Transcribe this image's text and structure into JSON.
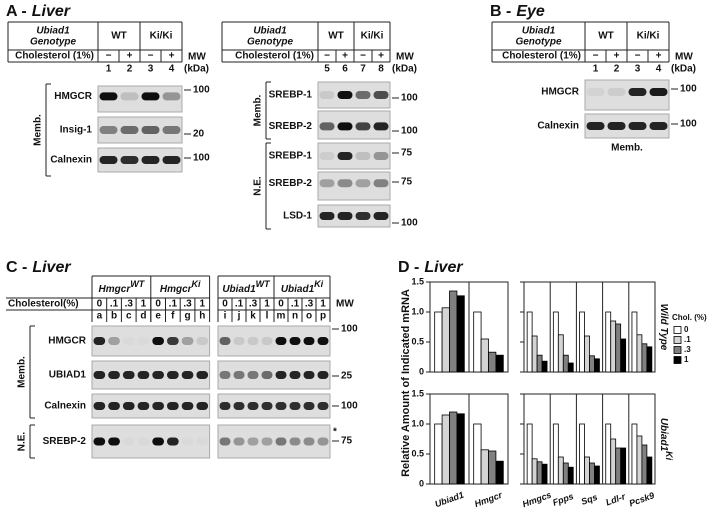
{
  "panel_a": {
    "letter": "A -",
    "tissue": "Liver",
    "left": {
      "gene": "Ubiad1",
      "genotype": "Genotype",
      "groups": [
        "WT",
        "Ki/Ki"
      ],
      "treatment": "Cholesterol (1%)",
      "signs": [
        "−",
        "+",
        "−",
        "+"
      ],
      "lanes": [
        "1",
        "2",
        "3",
        "4"
      ],
      "mw": "MW",
      "kda": "(kDa)",
      "fractions": [
        {
          "name": "Memb.",
          "blots": [
            {
              "protein": "HMGCR",
              "marker": "100"
            },
            {
              "protein": "Insig-1",
              "marker": "20"
            },
            {
              "protein": "Calnexin",
              "marker": "100"
            }
          ]
        }
      ]
    },
    "right": {
      "gene": "Ubiad1",
      "genotype": "Genotype",
      "groups": [
        "WT",
        "Ki/Ki"
      ],
      "treatment": "Cholesterol (1%)",
      "signs": [
        "−",
        "+",
        "−",
        "+"
      ],
      "lanes": [
        "5",
        "6",
        "7",
        "8"
      ],
      "mw": "MW",
      "kda": "(kDa)",
      "fractions": [
        {
          "name": "Memb.",
          "blots": [
            {
              "protein": "SREBP-1",
              "marker": "100"
            },
            {
              "protein": "SREBP-2",
              "marker": "100"
            }
          ]
        },
        {
          "name": "N.E.",
          "blots": [
            {
              "protein": "SREBP-1",
              "marker": "75"
            },
            {
              "protein": "SREBP-2",
              "marker": "75"
            },
            {
              "protein": "LSD-1",
              "marker": "100"
            }
          ]
        }
      ]
    }
  },
  "panel_b": {
    "letter": "B -",
    "tissue": "Eye",
    "gene": "Ubiad1",
    "genotype": "Genotype",
    "groups": [
      "WT",
      "Ki/Ki"
    ],
    "treatment": "Cholesterol (1%)",
    "signs": [
      "−",
      "+",
      "−",
      "+"
    ],
    "lanes": [
      "1",
      "2",
      "3",
      "4"
    ],
    "mw": "MW",
    "kda": "(kDa)",
    "fraction": "Memb.",
    "blots": [
      {
        "protein": "HMGCR",
        "marker": "100"
      },
      {
        "protein": "Calnexin",
        "marker": "100"
      }
    ]
  },
  "panel_c": {
    "letter": "C -",
    "tissue": "Liver",
    "treatment": "Cholesterol(%)",
    "mw": "MW",
    "left": {
      "groups": [
        {
          "gene": "Hmgcr",
          "allele": "WT"
        },
        {
          "gene": "Hmgcr",
          "allele": "Ki"
        }
      ],
      "doses": [
        "0",
        ".1",
        ".3",
        "1",
        "0",
        ".1",
        ".3",
        "1"
      ],
      "lanes": [
        "a",
        "b",
        "c",
        "d",
        "e",
        "f",
        "g",
        "h"
      ]
    },
    "right": {
      "groups": [
        {
          "gene": "Ubiad1",
          "allele": "WT"
        },
        {
          "gene": "Ubiad1",
          "allele": "Ki"
        }
      ],
      "doses": [
        "0",
        ".1",
        ".3",
        "1",
        "0",
        ".1",
        ".3",
        "1"
      ],
      "lanes": [
        "i",
        "j",
        "k",
        "l",
        "m",
        "n",
        "o",
        "p"
      ]
    },
    "fractions": [
      {
        "name": "Memb.",
        "blots": [
          {
            "protein": "HMGCR",
            "marker": "100"
          },
          {
            "protein": "UBIAD1",
            "marker": "25"
          },
          {
            "protein": "Calnexin",
            "marker": "100"
          }
        ]
      },
      {
        "name": "N.E.",
        "blots": [
          {
            "protein": "SREBP-2",
            "marker": "75"
          }
        ]
      }
    ],
    "note": "*"
  },
  "chart_data": {
    "type": "bar",
    "panel": "D -",
    "title": "Liver",
    "ylabel": "Relative Amount of Indicated mRNA",
    "categories": [
      "Ubiad1",
      "Hmgcr",
      "Hmgcs",
      "Fpps",
      "Sqs",
      "Ldl-r",
      "Pcsk9"
    ],
    "legend_title": "Chol. (%)",
    "series": [
      {
        "name": "0",
        "color": "#ffffff"
      },
      {
        "name": ".1",
        "color": "#d4d4d4"
      },
      {
        "name": ".3",
        "color": "#808080"
      },
      {
        "name": "1",
        "color": "#000000"
      }
    ],
    "ylim": [
      0,
      1.5
    ],
    "yticks": [
      0,
      0.5,
      {
        "value": 1,
        "label": "1.0"
      },
      1.5
    ],
    "subplots": [
      {
        "label": "Wild Type",
        "values": [
          [
            1,
            1,
            1,
            1,
            1,
            1,
            1
          ],
          [
            1.07,
            0.55,
            0.6,
            0.62,
            0.6,
            0.85,
            0.62
          ],
          [
            1.35,
            0.33,
            0.28,
            0.28,
            0.27,
            0.8,
            0.47
          ],
          [
            1.27,
            0.28,
            0.18,
            0.15,
            0.22,
            0.55,
            0.42
          ]
        ]
      },
      {
        "label": "Ubiad1",
        "label_sup": "Ki",
        "values": [
          [
            1,
            1,
            1,
            1,
            1,
            1,
            1
          ],
          [
            1.15,
            0.57,
            0.42,
            0.45,
            0.45,
            0.75,
            0.8
          ],
          [
            1.2,
            0.55,
            0.37,
            0.35,
            0.35,
            0.6,
            0.65
          ],
          [
            1.17,
            0.38,
            0.33,
            0.28,
            0.3,
            0.6,
            0.45
          ]
        ]
      }
    ]
  }
}
